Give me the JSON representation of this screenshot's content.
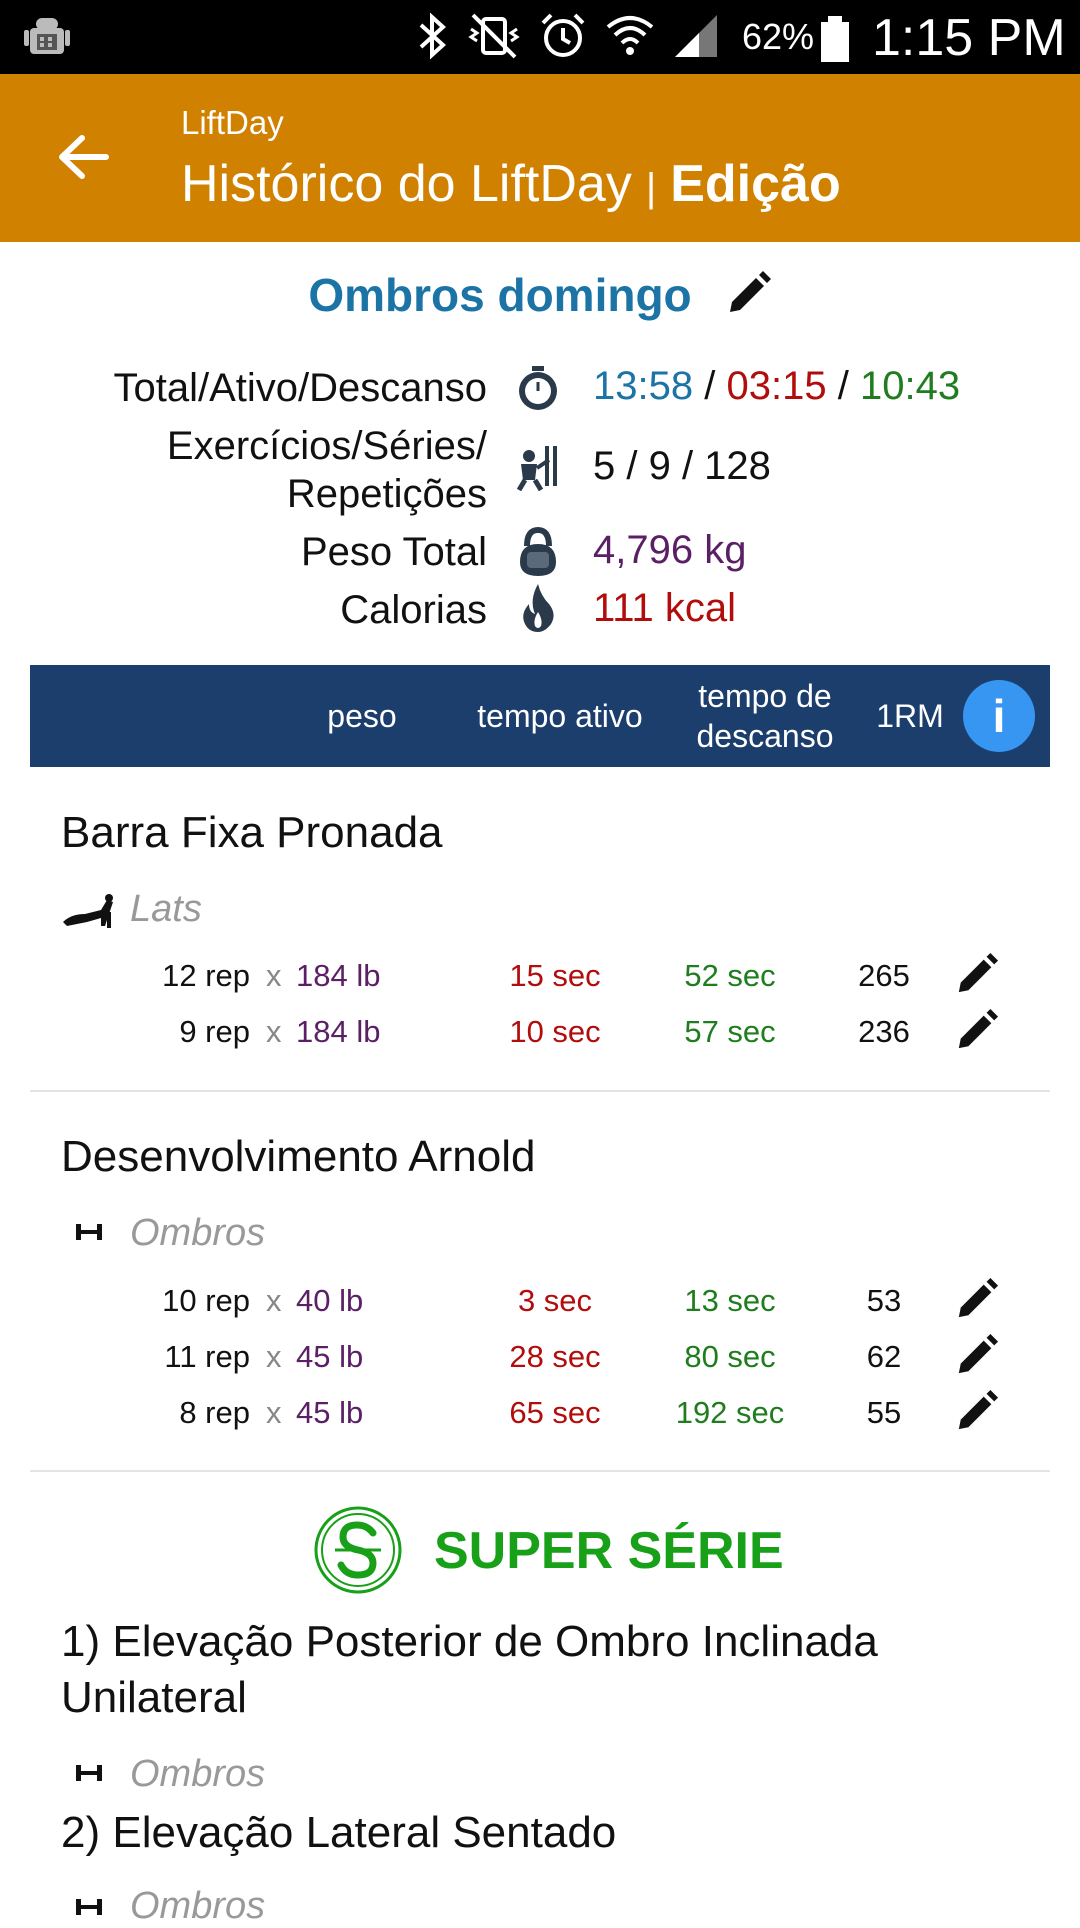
{
  "status_bar": {
    "battery_percent": "62%",
    "time": "1:15 PM",
    "icons": [
      "android-debug-icon",
      "bluetooth-icon",
      "vibrate-icon",
      "alarm-icon",
      "wifi-icon",
      "signal-icon",
      "battery-icon"
    ]
  },
  "app_bar": {
    "subtitle": "LiftDay",
    "title": "Histórico do LiftDay",
    "separator": "|",
    "mode": "Edição",
    "back_icon": "arrow-back-icon",
    "color": "#d18100"
  },
  "workout": {
    "title": "Ombros domingo",
    "summary": {
      "time_label": "Total/Ativo/Descanso",
      "total": "13:58",
      "active": "03:15",
      "rest": "10:43",
      "slash": "/",
      "counts_label_1": "Exercícios/Séries/",
      "counts_label_2": "Repetições",
      "counts": "5 / 9 / 128",
      "weight_label": "Peso Total",
      "weight": "4,796 kg",
      "calories_label": "Calorias",
      "calories": "111 kcal"
    }
  },
  "columns": {
    "weight": "peso",
    "active_time": "tempo ativo",
    "rest_time_1": "tempo de",
    "rest_time_2": "descanso",
    "one_rm": "1RM",
    "info": "i",
    "band_color": "#1b3e6d"
  },
  "exercises": [
    {
      "name": "Barra Fixa Pronada",
      "muscle": "Lats",
      "icon": "pullup-icon",
      "sets": [
        {
          "reps": "12 rep",
          "x": "x",
          "weight": "184 lb",
          "active": "15 sec",
          "rest": "52 sec",
          "one_rm": "265"
        },
        {
          "reps": "9 rep",
          "x": "x",
          "weight": "184 lb",
          "active": "10 sec",
          "rest": "57 sec",
          "one_rm": "236"
        }
      ]
    },
    {
      "name": "Desenvolvimento Arnold",
      "muscle": "Ombros",
      "icon": "dumbbell-icon",
      "sets": [
        {
          "reps": "10 rep",
          "x": "x",
          "weight": "40 lb",
          "active": "3 sec",
          "rest": "13 sec",
          "one_rm": "53"
        },
        {
          "reps": "11 rep",
          "x": "x",
          "weight": "45 lb",
          "active": "28 sec",
          "rest": "80 sec",
          "one_rm": "62"
        },
        {
          "reps": "8 rep",
          "x": "x",
          "weight": "45 lb",
          "active": "65 sec",
          "rest": "192 sec",
          "one_rm": "55"
        }
      ]
    }
  ],
  "superset": {
    "label": "SUPER SÉRIE",
    "color": "#18a018",
    "items": [
      {
        "name": "1) Elevação Posterior de Ombro Inclinada Unilateral",
        "muscle": "Ombros"
      },
      {
        "name": "2) Elevação Lateral Sentado",
        "muscle": "Ombros"
      }
    ]
  }
}
